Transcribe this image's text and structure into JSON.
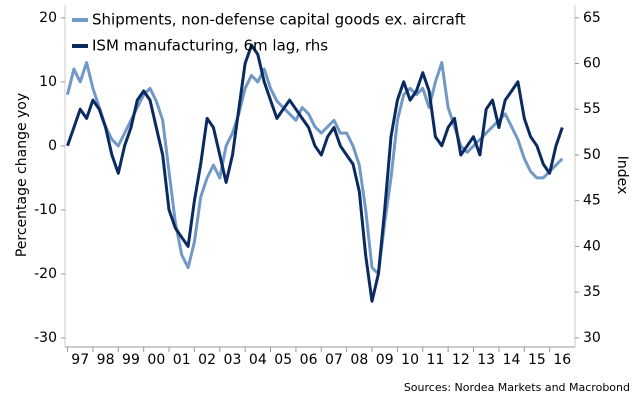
{
  "chart_data": {
    "type": "line",
    "y_label": "Percentage change yoy",
    "y2_label": "Index",
    "source": "Sources: Nordea Markets and Macrobond",
    "x": [
      1997.0,
      1997.25,
      1997.5,
      1997.75,
      1998.0,
      1998.25,
      1998.5,
      1998.75,
      1999.0,
      1999.25,
      1999.5,
      1999.75,
      2000.0,
      2000.25,
      2000.5,
      2000.75,
      2001.0,
      2001.25,
      2001.5,
      2001.75,
      2002.0,
      2002.25,
      2002.5,
      2002.75,
      2003.0,
      2003.25,
      2003.5,
      2003.75,
      2004.0,
      2004.25,
      2004.5,
      2004.75,
      2005.0,
      2005.25,
      2005.5,
      2005.75,
      2006.0,
      2006.25,
      2006.5,
      2006.75,
      2007.0,
      2007.25,
      2007.5,
      2007.75,
      2008.0,
      2008.25,
      2008.5,
      2008.75,
      2009.0,
      2009.25,
      2009.5,
      2009.75,
      2010.0,
      2010.25,
      2010.5,
      2010.75,
      2011.0,
      2011.25,
      2011.5,
      2011.75,
      2012.0,
      2012.25,
      2012.5,
      2012.75,
      2013.0,
      2013.25,
      2013.5,
      2013.75,
      2014.0,
      2014.25,
      2014.5,
      2014.75,
      2015.0,
      2015.25,
      2015.5,
      2015.75,
      2016.0,
      2016.25,
      2016.5
    ],
    "series": [
      {
        "name": "Shipments, non-defense capital goods ex. aircraft",
        "color": "#7199c6",
        "values": [
          8,
          12,
          10,
          13,
          9,
          6,
          3,
          1,
          0,
          2,
          4,
          6,
          8,
          9,
          7,
          4,
          -4,
          -12,
          -17,
          -19,
          -15,
          -8,
          -5,
          -3,
          -5,
          0,
          2,
          5,
          9,
          11,
          10,
          12,
          9,
          7,
          6,
          5,
          4,
          6,
          5,
          3,
          2,
          3,
          4,
          2,
          2,
          0,
          -3,
          -10,
          -19,
          -20,
          -12,
          -5,
          4,
          8,
          9,
          8,
          9,
          6,
          10,
          13,
          6,
          3,
          0,
          -1,
          0,
          1,
          2,
          3,
          4,
          5,
          3,
          1,
          -2,
          -4,
          -5,
          -5,
          -4,
          -3,
          -2
        ]
      },
      {
        "name": "ISM manufacturing, 6m lag, rhs",
        "color": "#0b2b60",
        "axis": "y2",
        "values": [
          51,
          53,
          55,
          54,
          56,
          55,
          53,
          50,
          48,
          51,
          53,
          56,
          57,
          56,
          53,
          50,
          44,
          42,
          41,
          40,
          45,
          49,
          54,
          53,
          50,
          47,
          50,
          55,
          60,
          62,
          61,
          58,
          56,
          54,
          55,
          56,
          55,
          54,
          53,
          51,
          50,
          52,
          53,
          51,
          50,
          49,
          46,
          39,
          34,
          37,
          44,
          52,
          56,
          58,
          56,
          57,
          59,
          57,
          52,
          51,
          53,
          54,
          50,
          51,
          52,
          50,
          55,
          56,
          53,
          56,
          57,
          58,
          54,
          52,
          51,
          49,
          48,
          51,
          53
        ]
      }
    ],
    "xlim": [
      1996.9,
      2017.0
    ],
    "xticks": [
      {
        "value": 1997,
        "label": "97"
      },
      {
        "value": 1998,
        "label": "98"
      },
      {
        "value": 1999,
        "label": "99"
      },
      {
        "value": 2000,
        "label": "00"
      },
      {
        "value": 2001,
        "label": "01"
      },
      {
        "value": 2002,
        "label": "02"
      },
      {
        "value": 2003,
        "label": "03"
      },
      {
        "value": 2004,
        "label": "04"
      },
      {
        "value": 2005,
        "label": "05"
      },
      {
        "value": 2006,
        "label": "06"
      },
      {
        "value": 2007,
        "label": "07"
      },
      {
        "value": 2008,
        "label": "08"
      },
      {
        "value": 2009,
        "label": "09"
      },
      {
        "value": 2010,
        "label": "10"
      },
      {
        "value": 2011,
        "label": "11"
      },
      {
        "value": 2012,
        "label": "12"
      },
      {
        "value": 2013,
        "label": "13"
      },
      {
        "value": 2014,
        "label": "14"
      },
      {
        "value": 2015,
        "label": "15"
      },
      {
        "value": 2016,
        "label": "16"
      }
    ],
    "ylim": [
      -31.4,
      22
    ],
    "yticks": [
      -30,
      -20,
      -10,
      0,
      10,
      20
    ],
    "y2lim": [
      29.0,
      66.4
    ],
    "y2ticks": [
      30,
      35,
      40,
      45,
      50,
      55,
      60,
      65
    ],
    "legend": "top-left"
  }
}
